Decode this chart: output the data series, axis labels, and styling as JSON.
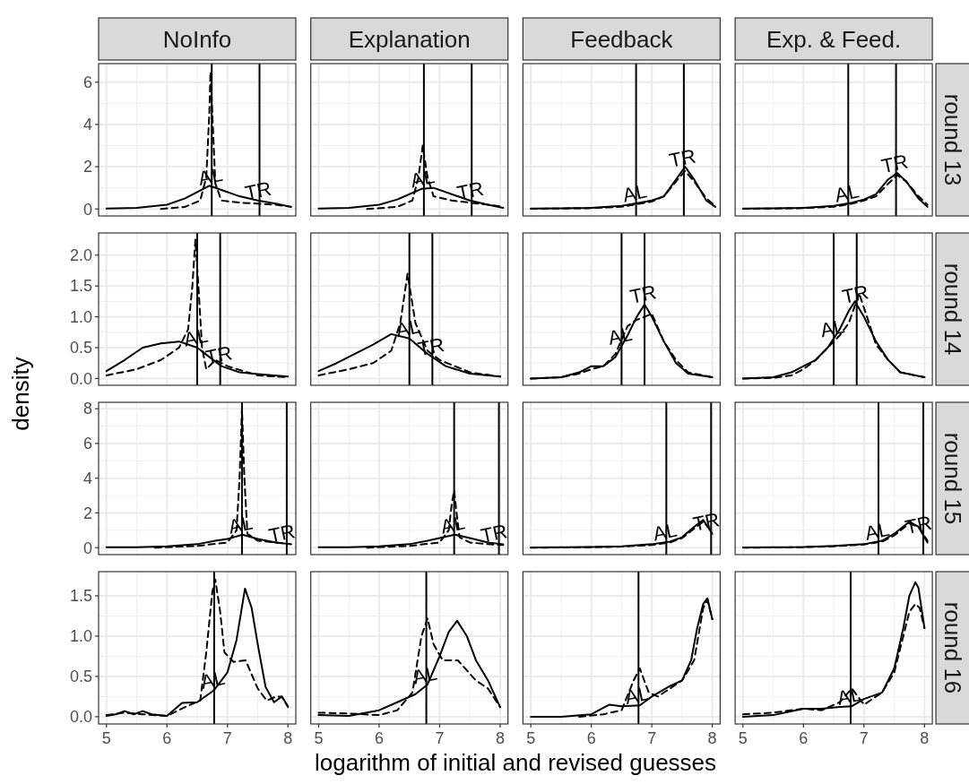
{
  "chart_data": [
    {
      "type": "line",
      "title": "NoInfo",
      "xlabel": "logarithm of initial and revised guesses",
      "xlim": [
        4.87,
        8.13
      ],
      "xticks": [
        5,
        6,
        7,
        8
      ],
      "ylim": [
        -0.33,
        6.88
      ],
      "yticks": [
        0,
        2,
        4,
        6
      ],
      "grid": true,
      "tick_labels": "y",
      "ref_lines": [
        {
          "axis": "x",
          "value": 6.74,
          "label": "AL"
        },
        {
          "axis": "x",
          "value": 7.53,
          "label": "TR"
        }
      ],
      "series": [
        {
          "color": "#000000",
          "line_style": "solid",
          "x": [
            5,
            5.5,
            6,
            6.3,
            6.5,
            6.7,
            6.9,
            7.2,
            7.5,
            7.8,
            8.05
          ],
          "values": [
            0.02,
            0.05,
            0.2,
            0.5,
            0.8,
            1.1,
            0.9,
            0.6,
            0.4,
            0.25,
            0.1
          ]
        },
        {
          "color": "#000000",
          "line_style": "dashed",
          "x": [
            5.9,
            6.3,
            6.55,
            6.65,
            6.7,
            6.72,
            6.75,
            6.8,
            6.9,
            7.2,
            7.5,
            7.8,
            8.05
          ],
          "values": [
            0,
            0.1,
            0.4,
            1.5,
            4.5,
            6.5,
            4.5,
            1.2,
            0.4,
            0.3,
            0.25,
            0.2,
            0.1
          ]
        }
      ]
    },
    {
      "type": "line",
      "title": "Explanation",
      "xlim": [
        4.87,
        8.13
      ],
      "xticks": [
        5,
        6,
        7,
        8
      ],
      "ylim": [
        -0.33,
        6.88
      ],
      "yticks": [
        0,
        2,
        4,
        6
      ],
      "grid": true,
      "tick_labels": false,
      "ref_lines": [
        {
          "axis": "x",
          "value": 6.74,
          "label": "AL"
        },
        {
          "axis": "x",
          "value": 7.53,
          "label": "TR"
        }
      ],
      "series": [
        {
          "color": "#000000",
          "line_style": "solid",
          "x": [
            5,
            5.5,
            6,
            6.3,
            6.5,
            6.7,
            6.9,
            7.2,
            7.5,
            7.8,
            8.05
          ],
          "values": [
            0.02,
            0.05,
            0.2,
            0.45,
            0.7,
            0.95,
            1.0,
            0.7,
            0.4,
            0.2,
            0.05
          ]
        },
        {
          "color": "#000000",
          "line_style": "dashed",
          "x": [
            5.8,
            6.3,
            6.55,
            6.65,
            6.72,
            6.8,
            6.9,
            7.2,
            7.5,
            7.8,
            8.05
          ],
          "values": [
            0,
            0.1,
            0.4,
            1.5,
            3.0,
            1.5,
            0.6,
            0.4,
            0.3,
            0.2,
            0.1
          ]
        }
      ]
    },
    {
      "type": "line",
      "title": "Feedback",
      "xlim": [
        4.87,
        8.13
      ],
      "xticks": [
        5,
        6,
        7,
        8
      ],
      "ylim": [
        -0.33,
        6.88
      ],
      "yticks": [
        0,
        2,
        4,
        6
      ],
      "grid": true,
      "tick_labels": false,
      "ref_lines": [
        {
          "axis": "x",
          "value": 6.74,
          "label": "AL"
        },
        {
          "axis": "x",
          "value": 7.53,
          "label": "TR"
        }
      ],
      "series": [
        {
          "color": "#000000",
          "line_style": "solid",
          "x": [
            5,
            5.5,
            6,
            6.5,
            6.8,
            7,
            7.2,
            7.4,
            7.55,
            7.7,
            7.9,
            8.05
          ],
          "values": [
            0.02,
            0.03,
            0.05,
            0.15,
            0.3,
            0.4,
            0.6,
            1.4,
            2.0,
            1.4,
            0.4,
            0.1
          ]
        },
        {
          "color": "#000000",
          "line_style": "dashed",
          "x": [
            5,
            5.5,
            6,
            6.5,
            6.8,
            7,
            7.2,
            7.4,
            7.55,
            7.7,
            7.9,
            8.05
          ],
          "values": [
            0.01,
            0.02,
            0.04,
            0.1,
            0.25,
            0.35,
            0.6,
            1.3,
            1.8,
            1.3,
            0.5,
            0.15
          ]
        }
      ]
    },
    {
      "type": "line",
      "title": "Exp. & Feed.",
      "y2label": "round 13",
      "xlim": [
        4.87,
        8.13
      ],
      "xticks": [
        5,
        6,
        7,
        8
      ],
      "ylim": [
        -0.33,
        6.88
      ],
      "yticks": [
        0,
        2,
        4,
        6
      ],
      "grid": true,
      "tick_labels": false,
      "ref_lines": [
        {
          "axis": "x",
          "value": 6.74,
          "label": "AL"
        },
        {
          "axis": "x",
          "value": 7.53,
          "label": "TR"
        }
      ],
      "series": [
        {
          "color": "#000000",
          "line_style": "solid",
          "x": [
            5,
            5.5,
            6,
            6.5,
            6.8,
            7,
            7.2,
            7.4,
            7.55,
            7.7,
            7.9,
            8.05
          ],
          "values": [
            0.02,
            0.03,
            0.05,
            0.15,
            0.3,
            0.45,
            0.7,
            1.4,
            1.7,
            1.3,
            0.5,
            0.1
          ]
        },
        {
          "color": "#000000",
          "line_style": "dashed",
          "x": [
            5,
            5.5,
            6,
            6.5,
            6.8,
            7,
            7.2,
            7.4,
            7.55,
            7.7,
            7.9,
            8.05
          ],
          "values": [
            0.01,
            0.02,
            0.04,
            0.1,
            0.25,
            0.4,
            0.6,
            1.2,
            1.6,
            1.3,
            0.6,
            0.2
          ]
        }
      ]
    },
    {
      "type": "line",
      "ylabel": "density",
      "xlim": [
        4.87,
        8.13
      ],
      "xticks": [
        5,
        6,
        7,
        8
      ],
      "ylim": [
        -0.11,
        2.36
      ],
      "yticks": [
        {
          "value": 0,
          "label": "0.0"
        },
        0.5,
        {
          "value": 1,
          "label": "1.0"
        },
        1.5,
        {
          "value": 2,
          "label": "2.0"
        }
      ],
      "grid": true,
      "tick_labels": "y",
      "ref_lines": [
        {
          "axis": "x",
          "value": 6.5,
          "label": "AL"
        },
        {
          "axis": "x",
          "value": 6.88,
          "label": "TR"
        }
      ],
      "series": [
        {
          "color": "#000000",
          "line_style": "solid",
          "x": [
            5.0,
            5.3,
            5.6,
            5.9,
            6.2,
            6.5,
            6.7,
            6.9,
            7.2,
            7.5,
            8.0
          ],
          "values": [
            0.12,
            0.3,
            0.5,
            0.57,
            0.6,
            0.5,
            0.35,
            0.2,
            0.1,
            0.07,
            0.03
          ]
        },
        {
          "color": "#000000",
          "line_style": "dashed",
          "x": [
            5.0,
            5.5,
            5.9,
            6.2,
            6.35,
            6.42,
            6.47,
            6.52,
            6.58,
            6.65,
            6.8,
            7.0,
            7.5,
            8.0
          ],
          "values": [
            0.05,
            0.15,
            0.3,
            0.5,
            0.8,
            1.5,
            2.25,
            1.5,
            0.5,
            0.15,
            0.3,
            0.2,
            0.05,
            0.02
          ]
        }
      ]
    },
    {
      "type": "line",
      "xlim": [
        4.87,
        8.13
      ],
      "xticks": [
        5,
        6,
        7,
        8
      ],
      "ylim": [
        -0.11,
        2.36
      ],
      "yticks": [
        0,
        0.5,
        1,
        1.5,
        2
      ],
      "grid": true,
      "tick_labels": false,
      "ref_lines": [
        {
          "axis": "x",
          "value": 6.5,
          "label": "AL"
        },
        {
          "axis": "x",
          "value": 6.88,
          "label": "TR"
        }
      ],
      "series": [
        {
          "color": "#000000",
          "line_style": "solid",
          "x": [
            5,
            5.3,
            5.6,
            5.9,
            6.2,
            6.5,
            6.8,
            7.1,
            7.5,
            8.0
          ],
          "values": [
            0.12,
            0.25,
            0.4,
            0.55,
            0.72,
            0.65,
            0.4,
            0.2,
            0.08,
            0.03
          ]
        },
        {
          "color": "#000000",
          "line_style": "dashed",
          "x": [
            5,
            5.5,
            5.9,
            6.2,
            6.35,
            6.47,
            6.6,
            6.8,
            7.0,
            7.5,
            8.0
          ],
          "values": [
            0.05,
            0.15,
            0.25,
            0.45,
            0.9,
            1.7,
            0.9,
            0.45,
            0.3,
            0.1,
            0.03
          ]
        }
      ]
    },
    {
      "type": "line",
      "xlim": [
        4.87,
        8.13
      ],
      "xticks": [
        5,
        6,
        7,
        8
      ],
      "ylim": [
        -0.11,
        2.36
      ],
      "yticks": [
        0,
        0.5,
        1,
        1.5,
        2
      ],
      "grid": true,
      "tick_labels": false,
      "ref_lines": [
        {
          "axis": "x",
          "value": 6.5,
          "label": "AL"
        },
        {
          "axis": "x",
          "value": 6.88,
          "label": "TR"
        }
      ],
      "series": [
        {
          "color": "#000000",
          "line_style": "solid",
          "x": [
            5,
            5.5,
            5.8,
            6.0,
            6.2,
            6.4,
            6.6,
            6.75,
            6.88,
            7.0,
            7.2,
            7.4,
            7.6,
            8.0
          ],
          "values": [
            0,
            0.02,
            0.1,
            0.2,
            0.2,
            0.35,
            0.7,
            1.0,
            1.2,
            1.0,
            0.6,
            0.25,
            0.08,
            0.02
          ]
        },
        {
          "color": "#000000",
          "line_style": "dashed",
          "x": [
            5,
            5.5,
            5.8,
            6.0,
            6.2,
            6.4,
            6.6,
            6.75,
            6.88,
            7.0,
            7.2,
            7.4,
            7.6,
            8.0
          ],
          "values": [
            0,
            0.02,
            0.08,
            0.15,
            0.2,
            0.4,
            0.85,
            0.95,
            1.0,
            1.05,
            0.6,
            0.3,
            0.1,
            0.02
          ]
        }
      ]
    },
    {
      "type": "line",
      "y2label": "round 14",
      "xlim": [
        4.87,
        8.13
      ],
      "xticks": [
        5,
        6,
        7,
        8
      ],
      "ylim": [
        -0.11,
        2.36
      ],
      "yticks": [
        0,
        0.5,
        1,
        1.5,
        2
      ],
      "grid": true,
      "tick_labels": false,
      "ref_lines": [
        {
          "axis": "x",
          "value": 6.5,
          "label": "AL"
        },
        {
          "axis": "x",
          "value": 6.88,
          "label": "TR"
        }
      ],
      "series": [
        {
          "color": "#000000",
          "line_style": "solid",
          "x": [
            5,
            5.5,
            5.8,
            6.0,
            6.2,
            6.4,
            6.6,
            6.75,
            6.85,
            7.0,
            7.2,
            7.4,
            7.6,
            8.0
          ],
          "values": [
            0,
            0.02,
            0.1,
            0.2,
            0.3,
            0.5,
            0.8,
            1.1,
            1.25,
            1.0,
            0.6,
            0.3,
            0.1,
            0.02
          ]
        },
        {
          "color": "#000000",
          "line_style": "dashed",
          "x": [
            5,
            5.5,
            5.8,
            6.0,
            6.2,
            6.4,
            6.6,
            6.75,
            6.92,
            7.05,
            7.2,
            7.4,
            7.6,
            8.0
          ],
          "values": [
            0,
            0.01,
            0.05,
            0.15,
            0.3,
            0.5,
            0.7,
            0.9,
            1.38,
            1.0,
            0.55,
            0.3,
            0.1,
            0.02
          ]
        }
      ]
    },
    {
      "type": "line",
      "xlim": [
        4.87,
        8.13
      ],
      "xticks": [
        5,
        6,
        7,
        8
      ],
      "ylim": [
        -0.4,
        8.37
      ],
      "yticks": [
        0,
        2,
        4,
        6,
        8
      ],
      "grid": true,
      "tick_labels": "y",
      "ref_lines": [
        {
          "axis": "x",
          "value": 7.24,
          "label": "AL"
        },
        {
          "axis": "x",
          "value": 7.98,
          "label": "TR"
        }
      ],
      "series": [
        {
          "color": "#000000",
          "line_style": "solid",
          "x": [
            5,
            5.5,
            6,
            6.5,
            6.8,
            7.0,
            7.25,
            7.5,
            7.8,
            8.05
          ],
          "values": [
            0.02,
            0.03,
            0.08,
            0.2,
            0.4,
            0.5,
            0.75,
            0.5,
            0.3,
            0.2
          ]
        },
        {
          "color": "#000000",
          "line_style": "dashed",
          "x": [
            5.8,
            6.5,
            7.0,
            7.15,
            7.2,
            7.24,
            7.28,
            7.33,
            7.5,
            7.8,
            8.05
          ],
          "values": [
            0,
            0.1,
            0.3,
            1.0,
            4.0,
            8.0,
            4.0,
            0.8,
            0.4,
            0.3,
            0.2
          ]
        }
      ]
    },
    {
      "type": "line",
      "xlim": [
        4.87,
        8.13
      ],
      "xticks": [
        5,
        6,
        7,
        8
      ],
      "ylim": [
        -0.4,
        8.37
      ],
      "yticks": [
        0,
        2,
        4,
        6,
        8
      ],
      "grid": true,
      "tick_labels": false,
      "ref_lines": [
        {
          "axis": "x",
          "value": 7.24,
          "label": "AL"
        },
        {
          "axis": "x",
          "value": 7.98,
          "label": "TR"
        }
      ],
      "series": [
        {
          "color": "#000000",
          "line_style": "solid",
          "x": [
            5,
            5.5,
            6,
            6.5,
            6.8,
            7.0,
            7.25,
            7.5,
            7.8,
            8.05
          ],
          "values": [
            0.02,
            0.03,
            0.08,
            0.2,
            0.4,
            0.55,
            0.75,
            0.55,
            0.3,
            0.2
          ]
        },
        {
          "color": "#000000",
          "line_style": "dashed",
          "x": [
            5.8,
            6.5,
            7.0,
            7.15,
            7.2,
            7.24,
            7.28,
            7.33,
            7.5,
            7.8,
            8.05
          ],
          "values": [
            0,
            0.1,
            0.3,
            1.0,
            2.5,
            3.3,
            2.0,
            0.6,
            0.3,
            0.2,
            0.15
          ]
        }
      ]
    },
    {
      "type": "line",
      "xlim": [
        4.87,
        8.13
      ],
      "xticks": [
        5,
        6,
        7,
        8
      ],
      "ylim": [
        -0.4,
        8.37
      ],
      "yticks": [
        0,
        2,
        4,
        6,
        8
      ],
      "grid": true,
      "tick_labels": false,
      "ref_lines": [
        {
          "axis": "x",
          "value": 7.24,
          "label": "AL"
        },
        {
          "axis": "x",
          "value": 7.98,
          "label": "TR"
        }
      ],
      "series": [
        {
          "color": "#000000",
          "line_style": "solid",
          "x": [
            5,
            5.5,
            6,
            6.5,
            7,
            7.3,
            7.5,
            7.7,
            7.85,
            8.0
          ],
          "values": [
            0.01,
            0.02,
            0.04,
            0.08,
            0.2,
            0.35,
            0.6,
            1.2,
            1.6,
            0.8
          ]
        },
        {
          "color": "#000000",
          "line_style": "dashed",
          "x": [
            5,
            5.5,
            6,
            6.5,
            7,
            7.3,
            7.5,
            7.7,
            7.85,
            8.0
          ],
          "values": [
            0,
            0.01,
            0.03,
            0.06,
            0.15,
            0.3,
            0.55,
            1.1,
            1.5,
            0.9
          ]
        }
      ]
    },
    {
      "type": "line",
      "y2label": "round 15",
      "xlim": [
        4.87,
        8.13
      ],
      "xticks": [
        5,
        6,
        7,
        8
      ],
      "ylim": [
        -0.4,
        8.37
      ],
      "yticks": [
        0,
        2,
        4,
        6,
        8
      ],
      "grid": true,
      "tick_labels": false,
      "ref_lines": [
        {
          "axis": "x",
          "value": 7.24,
          "label": "AL"
        },
        {
          "axis": "x",
          "value": 7.98,
          "label": "TR"
        }
      ],
      "series": [
        {
          "color": "#000000",
          "line_style": "solid",
          "x": [
            5,
            5.5,
            6,
            6.5,
            7,
            7.3,
            7.5,
            7.75,
            7.9,
            8.05
          ],
          "values": [
            0.01,
            0.02,
            0.04,
            0.1,
            0.2,
            0.4,
            0.8,
            1.5,
            1.2,
            0.3
          ]
        },
        {
          "color": "#000000",
          "line_style": "dashed",
          "x": [
            5,
            5.5,
            6,
            6.5,
            7,
            7.3,
            7.5,
            7.75,
            7.9,
            8.05
          ],
          "values": [
            0,
            0.01,
            0.03,
            0.08,
            0.18,
            0.35,
            0.7,
            1.4,
            1.2,
            0.4
          ]
        }
      ]
    },
    {
      "type": "line",
      "xlim": [
        4.87,
        8.13
      ],
      "xticks": [
        5,
        6,
        7,
        8
      ],
      "ylim": [
        -0.09,
        1.8
      ],
      "yticks": [
        {
          "value": 0,
          "label": "0.0"
        },
        0.5,
        {
          "value": 1,
          "label": "1.0"
        },
        1.5
      ],
      "grid": true,
      "ref_lines": [
        {
          "axis": "x",
          "value": 6.78,
          "label": "AL"
        }
      ],
      "series": [
        {
          "color": "#000000",
          "line_style": "solid",
          "x": [
            5,
            5.15,
            5.3,
            5.45,
            5.6,
            5.75,
            6.0,
            6.25,
            6.5,
            6.78,
            7.0,
            7.15,
            7.29,
            7.4,
            7.5,
            7.63,
            7.77,
            7.9,
            8.0
          ],
          "values": [
            0.01,
            0.03,
            0.07,
            0.03,
            0.07,
            0.03,
            0.01,
            0.17,
            0.18,
            0.33,
            0.55,
            0.95,
            1.59,
            1.35,
            0.9,
            0.37,
            0.18,
            0.25,
            0.13
          ]
        },
        {
          "color": "#000000",
          "line_style": "dashed",
          "x": [
            5,
            5.3,
            5.6,
            6.0,
            6.3,
            6.55,
            6.65,
            6.75,
            6.8,
            6.88,
            6.95,
            7.1,
            7.3,
            7.5,
            7.65,
            7.8,
            7.9,
            8.0
          ],
          "values": [
            0.02,
            0.05,
            0.03,
            0.01,
            0.12,
            0.2,
            0.8,
            1.55,
            1.7,
            1.3,
            0.8,
            0.68,
            0.7,
            0.35,
            0.2,
            0.25,
            0.25,
            0.12
          ]
        }
      ]
    },
    {
      "type": "line",
      "xlim": [
        4.87,
        8.13
      ],
      "xticks": [
        5,
        6,
        7,
        8
      ],
      "ylim": [
        -0.09,
        1.8
      ],
      "yticks": [
        0,
        0.5,
        1,
        1.5
      ],
      "grid": true,
      "tick_labels": "x",
      "ref_lines": [
        {
          "axis": "x",
          "value": 6.78,
          "label": "AL"
        }
      ],
      "series": [
        {
          "color": "#000000",
          "line_style": "solid",
          "x": [
            5,
            5.5,
            6,
            6.3,
            6.6,
            6.8,
            7.0,
            7.15,
            7.29,
            7.45,
            7.6,
            7.8,
            8.0
          ],
          "values": [
            0.02,
            0.01,
            0.08,
            0.18,
            0.28,
            0.4,
            0.75,
            1.05,
            1.19,
            1.0,
            0.7,
            0.45,
            0.12
          ]
        },
        {
          "color": "#000000",
          "line_style": "dashed",
          "x": [
            5,
            5.5,
            6.0,
            6.3,
            6.55,
            6.7,
            6.8,
            6.9,
            7.05,
            7.3,
            7.6,
            7.8,
            8.0
          ],
          "values": [
            0.05,
            0.04,
            0.02,
            0.08,
            0.3,
            1.0,
            1.22,
            0.9,
            0.7,
            0.7,
            0.45,
            0.35,
            0.12
          ]
        }
      ]
    },
    {
      "type": "line",
      "xlim": [
        4.87,
        8.13
      ],
      "xticks": [
        5,
        6,
        7,
        8
      ],
      "ylim": [
        -0.09,
        1.8
      ],
      "yticks": [
        0,
        0.5,
        1,
        1.5
      ],
      "grid": true,
      "tick_labels": "x",
      "ref_lines": [
        {
          "axis": "x",
          "value": 6.78,
          "label": "AL"
        }
      ],
      "series": [
        {
          "color": "#000000",
          "line_style": "solid",
          "x": [
            5,
            5.5,
            6.0,
            6.3,
            6.5,
            6.8,
            7.0,
            7.3,
            7.5,
            7.65,
            7.75,
            7.85,
            7.92,
            8.0
          ],
          "values": [
            0,
            0,
            0.03,
            0.15,
            0.13,
            0.14,
            0.25,
            0.38,
            0.45,
            0.7,
            1.1,
            1.4,
            1.47,
            1.21
          ]
        },
        {
          "color": "#000000",
          "line_style": "dashed",
          "x": [
            5.8,
            6.2,
            6.5,
            6.7,
            6.8,
            6.95,
            7.1,
            7.3,
            7.5,
            7.7,
            7.85,
            7.92,
            8.0
          ],
          "values": [
            0,
            0.03,
            0.08,
            0.45,
            0.6,
            0.3,
            0.25,
            0.35,
            0.45,
            0.7,
            1.35,
            1.45,
            1.21
          ]
        }
      ]
    },
    {
      "type": "line",
      "y2label": "round 16",
      "xlim": [
        4.87,
        8.13
      ],
      "xticks": [
        5,
        6,
        7,
        8
      ],
      "ylim": [
        -0.09,
        1.8
      ],
      "yticks": [
        0,
        0.5,
        1,
        1.5
      ],
      "grid": true,
      "tick_labels": "x",
      "ref_lines": [
        {
          "axis": "x",
          "value": 6.78,
          "label": "AL"
        }
      ],
      "series": [
        {
          "color": "#000000",
          "line_style": "solid",
          "x": [
            5,
            5.5,
            6,
            6.3,
            6.6,
            6.8,
            7.0,
            7.3,
            7.5,
            7.65,
            7.75,
            7.85,
            7.9,
            8.0
          ],
          "values": [
            0,
            0.02,
            0.1,
            0.1,
            0.12,
            0.13,
            0.22,
            0.3,
            0.6,
            1.1,
            1.5,
            1.67,
            1.6,
            1.1
          ]
        },
        {
          "color": "#000000",
          "line_style": "dashed",
          "x": [
            5,
            5.5,
            6,
            6.3,
            6.6,
            6.8,
            7.0,
            7.3,
            7.5,
            7.65,
            7.75,
            7.85,
            7.92,
            8.0
          ],
          "values": [
            0.03,
            0.05,
            0.1,
            0.08,
            0.18,
            0.35,
            0.15,
            0.3,
            0.55,
            1.0,
            1.3,
            1.4,
            1.35,
            1.1
          ]
        }
      ]
    }
  ]
}
